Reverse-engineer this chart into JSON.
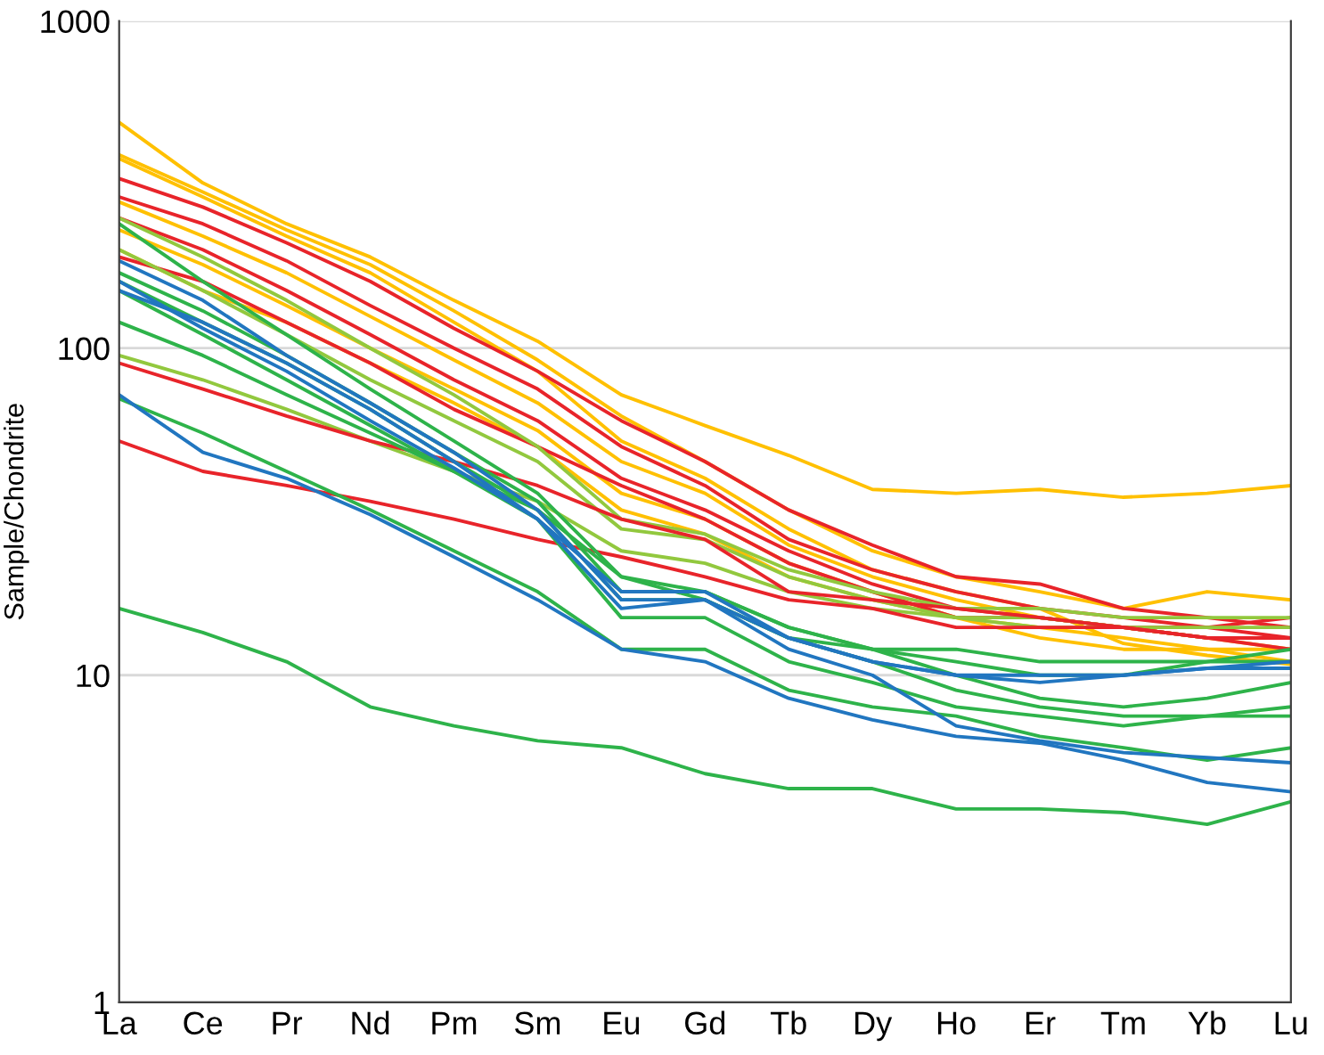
{
  "chart_data": {
    "type": "line",
    "ylabel": "Sample/Chondrite",
    "log": true,
    "ylim": [
      1,
      1000
    ],
    "yticks": [
      1,
      10,
      100,
      1000
    ],
    "grid": "y",
    "marker": "none",
    "line_style": "solid",
    "categories": [
      "La",
      "Ce",
      "Pr",
      "Nd",
      "Pm",
      "Sm",
      "Eu",
      "Gd",
      "Tb",
      "Dy",
      "Ho",
      "Er",
      "Tm",
      "Yb",
      "Lu"
    ],
    "series": [
      {
        "color": "#ffc000",
        "values": [
          490,
          320,
          240,
          190,
          140,
          105,
          72,
          58,
          47,
          37,
          36,
          37,
          35,
          36,
          38
        ]
      },
      {
        "color": "#ffc000",
        "values": [
          390,
          300,
          230,
          180,
          130,
          92,
          62,
          45,
          32,
          24,
          20,
          18,
          16,
          18,
          17
        ]
      },
      {
        "color": "#ffc000",
        "values": [
          380,
          290,
          220,
          170,
          120,
          85,
          52,
          40,
          28,
          21,
          18,
          16,
          12.5,
          11.5,
          10.8
        ]
      },
      {
        "color": "#e8242a",
        "values": [
          330,
          270,
          210,
          160,
          115,
          85,
          60,
          45,
          32,
          25,
          20,
          19,
          16,
          15,
          14
        ]
      },
      {
        "color": "#e8242a",
        "values": [
          290,
          240,
          185,
          135,
          100,
          75,
          50,
          38,
          26,
          21,
          18,
          16,
          15,
          14,
          13
        ]
      },
      {
        "color": "#ffc000",
        "values": [
          280,
          220,
          170,
          125,
          92,
          68,
          45,
          36,
          25,
          20,
          17,
          15,
          14,
          13,
          12
        ]
      },
      {
        "color": "#e8242a",
        "values": [
          250,
          200,
          150,
          110,
          80,
          60,
          40,
          32,
          24,
          19,
          16,
          15,
          14,
          13,
          13
        ]
      },
      {
        "color": "#ffc000",
        "values": [
          230,
          180,
          135,
          100,
          75,
          56,
          36,
          30,
          22,
          18,
          15,
          14,
          13,
          12,
          12
        ]
      },
      {
        "color": "#ffc000",
        "values": [
          200,
          150,
          120,
          90,
          68,
          50,
          32,
          27,
          20,
          17,
          15,
          13,
          12,
          12,
          11
        ]
      },
      {
        "color": "#e8242a",
        "values": [
          190,
          160,
          120,
          90,
          65,
          50,
          38,
          30,
          22,
          18,
          15,
          15,
          14,
          14,
          15
        ]
      },
      {
        "color": "#92c83e",
        "values": [
          250,
          190,
          140,
          100,
          72,
          50,
          30,
          27,
          21,
          18,
          16,
          16,
          15,
          15,
          15
        ]
      },
      {
        "color": "#92c83e",
        "values": [
          200,
          150,
          110,
          80,
          60,
          45,
          28,
          26,
          20,
          17,
          15,
          15,
          14,
          14,
          14
        ]
      },
      {
        "color": "#92c83e",
        "values": [
          95,
          80,
          65,
          52,
          42,
          34,
          24,
          22,
          18,
          16,
          15,
          14,
          14,
          13,
          13
        ]
      },
      {
        "color": "#e8242a",
        "values": [
          90,
          75,
          62,
          52,
          45,
          38,
          30,
          26,
          18,
          17,
          16,
          15,
          14,
          13,
          12
        ]
      },
      {
        "color": "#e8242a",
        "values": [
          52,
          42,
          38,
          34,
          30,
          26,
          23,
          20,
          17,
          16,
          14,
          14,
          14,
          13,
          13
        ]
      },
      {
        "color": "#2eb34a",
        "values": [
          170,
          130,
          95,
          68,
          48,
          34,
          18,
          18,
          14,
          12,
          10,
          8.5,
          8,
          8.5,
          9.5
        ]
      },
      {
        "color": "#2eb34a",
        "values": [
          160,
          120,
          90,
          65,
          45,
          32,
          17,
          17,
          13,
          11,
          9,
          8,
          7.5,
          7.5,
          7.5
        ]
      },
      {
        "color": "#2eb34a",
        "values": [
          240,
          160,
          110,
          75,
          52,
          36,
          20,
          18,
          14,
          12,
          11,
          10,
          10,
          11,
          12
        ]
      },
      {
        "color": "#2eb34a",
        "values": [
          150,
          110,
          80,
          58,
          42,
          30,
          15,
          15,
          11,
          9.5,
          8,
          7.5,
          7,
          7.5,
          8
        ]
      },
      {
        "color": "#2eb34a",
        "values": [
          120,
          95,
          72,
          55,
          42,
          32,
          20,
          17,
          13,
          12,
          12,
          11,
          11,
          11,
          11
        ]
      },
      {
        "color": "#2eb34a",
        "values": [
          70,
          55,
          42,
          32,
          24,
          18,
          12,
          12,
          9,
          8,
          7.5,
          6.5,
          6,
          5.5,
          6
        ]
      },
      {
        "color": "#2eb34a",
        "values": [
          16,
          13.5,
          11,
          8,
          7,
          6.3,
          6,
          5,
          4.5,
          4.5,
          3.9,
          3.9,
          3.8,
          3.5,
          4.1
        ]
      },
      {
        "color": "#2176c0",
        "values": [
          185,
          140,
          95,
          68,
          48,
          32,
          17,
          17,
          13,
          11,
          10,
          9.5,
          10,
          10.5,
          10.5
        ]
      },
      {
        "color": "#2176c0",
        "values": [
          150,
          120,
          90,
          65,
          45,
          30,
          18,
          18,
          13,
          11,
          10,
          10,
          10,
          10.5,
          11
        ]
      },
      {
        "color": "#2176c0",
        "values": [
          72,
          48,
          40,
          31,
          23,
          17,
          12,
          11,
          8.5,
          7.3,
          6.5,
          6.2,
          5.5,
          4.7,
          4.4
        ]
      },
      {
        "color": "#2176c0",
        "values": [
          160,
          115,
          85,
          60,
          43,
          30,
          16,
          17,
          12,
          10,
          7,
          6.3,
          5.8,
          5.6,
          5.4
        ]
      }
    ]
  }
}
